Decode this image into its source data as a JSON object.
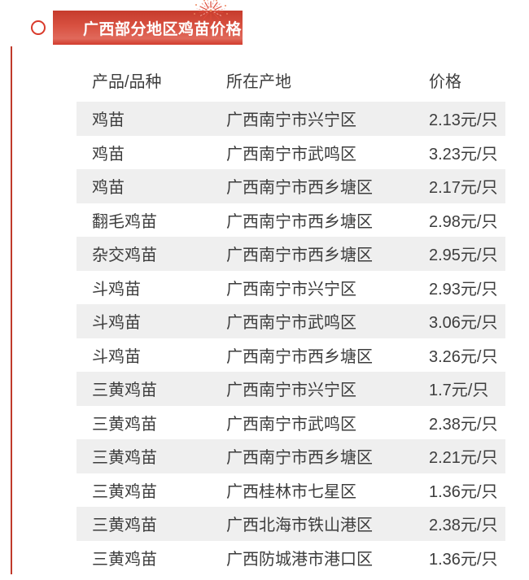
{
  "header": {
    "title": "广西部分地区鸡苗价格",
    "banner_gradient_top": "#c63b2c",
    "banner_gradient_bottom": "#d23b2c",
    "title_text_color": "#ffffff"
  },
  "decorations": {
    "circle_outline_icon": {
      "color": "#d93a2b"
    },
    "left_accent_line": {
      "color": "#c0392b"
    },
    "firework_icon": {
      "colors": [
        "#dd4a39",
        "#f2a095",
        "#ef8b62"
      ]
    }
  },
  "table": {
    "columns": [
      "产品/品种",
      "所在产地",
      "价格"
    ],
    "stripe_color": "#efefef",
    "text_color": "#3d3d3d",
    "rows": [
      [
        "鸡苗",
        "广西南宁市兴宁区",
        "2.13元/只"
      ],
      [
        "鸡苗",
        "广西南宁市武鸣区",
        "3.23元/只"
      ],
      [
        "鸡苗",
        "广西南宁市西乡塘区",
        "2.17元/只"
      ],
      [
        "翻毛鸡苗",
        "广西南宁市西乡塘区",
        "2.98元/只"
      ],
      [
        "杂交鸡苗",
        "广西南宁市西乡塘区",
        "2.95元/只"
      ],
      [
        "斗鸡苗",
        "广西南宁市兴宁区",
        "2.93元/只"
      ],
      [
        "斗鸡苗",
        "广西南宁市武鸣区",
        "3.06元/只"
      ],
      [
        "斗鸡苗",
        "广西南宁市西乡塘区",
        "3.26元/只"
      ],
      [
        "三黄鸡苗",
        "广西南宁市兴宁区",
        "1.7元/只"
      ],
      [
        "三黄鸡苗",
        "广西南宁市武鸣区",
        "2.38元/只"
      ],
      [
        "三黄鸡苗",
        "广西南宁市西乡塘区",
        "2.21元/只"
      ],
      [
        "三黄鸡苗",
        "广西桂林市七星区",
        "1.36元/只"
      ],
      [
        "三黄鸡苗",
        "广西北海市铁山港区",
        "2.38元/只"
      ],
      [
        "三黄鸡苗",
        "广西防城港市港口区",
        "1.36元/只"
      ]
    ]
  }
}
